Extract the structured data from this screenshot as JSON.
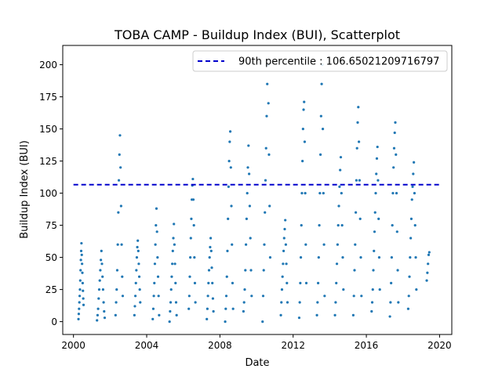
{
  "chart_data": {
    "type": "scatter",
    "title": "TOBA CAMP - Buildup Index (BUI), Scatterplot",
    "xlabel": "Date",
    "ylabel": "Buildup Index (BUI)",
    "xlim": [
      "1999-06-01",
      "2020-09-01"
    ],
    "ylim": [
      -10,
      215
    ],
    "x_ticks": [
      {
        "date": "2000-01-01",
        "label": "2000"
      },
      {
        "date": "2004-01-01",
        "label": "2004"
      },
      {
        "date": "2008-01-01",
        "label": "2008"
      },
      {
        "date": "2012-01-01",
        "label": "2012"
      },
      {
        "date": "2016-01-01",
        "label": "2016"
      },
      {
        "date": "2020-01-01",
        "label": "2020"
      }
    ],
    "y_ticks": [
      0,
      25,
      50,
      75,
      100,
      125,
      150,
      175,
      200
    ],
    "grid": false,
    "legend_position": "top-right",
    "point_color": "#1f77b4",
    "series": [
      {
        "seasons": [
          {
            "start": "2000-04-10",
            "end": "2000-07-20",
            "values": [
              2,
              6,
              10,
              15,
              20,
              25,
              32,
              40,
              48,
              55,
              61,
              52,
              45,
              38,
              30,
              24,
              18,
              13
            ]
          },
          {
            "start": "2001-04-15",
            "end": "2001-09-15",
            "values": [
              1,
              5,
              10,
              18,
              25,
              32,
              40,
              48,
              55,
              45,
              35,
              25,
              15,
              8,
              3
            ]
          },
          {
            "start": "2002-04-20",
            "end": "2002-09-10",
            "values": [
              5,
              15,
              25,
              40,
              60,
              85,
              110,
              130,
              145,
              120,
              90,
              60,
              35,
              20
            ]
          },
          {
            "start": "2003-05-01",
            "end": "2003-08-25",
            "values": [
              5,
              12,
              20,
              30,
              40,
              50,
              58,
              63,
              55,
              45,
              35,
              25,
              15
            ]
          },
          {
            "start": "2004-05-01",
            "end": "2004-09-05",
            "values": [
              2,
              10,
              20,
              30,
              45,
              60,
              75,
              88,
              70,
              50,
              35,
              20,
              5
            ]
          },
          {
            "start": "2005-04-01",
            "end": "2005-08-20",
            "values": [
              0,
              8,
              15,
              25,
              35,
              45,
              55,
              65,
              76,
              60,
              45,
              30,
              15,
              5
            ]
          },
          {
            "start": "2006-04-20",
            "end": "2006-08-30",
            "values": [
              10,
              20,
              35,
              50,
              65,
              80,
              95,
              106,
              111,
              95,
              75,
              50,
              30,
              15
            ]
          },
          {
            "start": "2007-04-15",
            "end": "2007-08-25",
            "values": [
              2,
              10,
              20,
              30,
              40,
              50,
              58,
              65,
              55,
              42,
              30,
              18,
              8
            ]
          },
          {
            "start": "2008-04-15",
            "end": "2008-09-20",
            "values": [
              0,
              10,
              20,
              35,
              55,
              80,
              105,
              125,
              140,
              148,
              120,
              90,
              60,
              30,
              10
            ]
          },
          {
            "start": "2009-04-15",
            "end": "2009-09-25",
            "values": [
              8,
              15,
              25,
              40,
              60,
              80,
              100,
              120,
              137,
              115,
              90,
              65,
              40,
              20
            ]
          },
          {
            "start": "2010-05-01",
            "end": "2010-09-30",
            "values": [
              0,
              20,
              40,
              60,
              85,
              110,
              135,
              160,
              185,
              200,
              170,
              130,
              90,
              50
            ]
          },
          {
            "start": "2011-05-01",
            "end": "2011-09-10",
            "values": [
              5,
              15,
              25,
              35,
              45,
              55,
              65,
              72,
              79,
              60,
              45,
              30,
              15
            ]
          },
          {
            "start": "2012-05-01",
            "end": "2012-09-20",
            "values": [
              3,
              15,
              30,
              50,
              75,
              100,
              125,
              150,
              165,
              171,
              140,
              100,
              60,
              30
            ]
          },
          {
            "start": "2013-04-20",
            "end": "2013-09-20",
            "values": [
              5,
              15,
              30,
              50,
              75,
              100,
              130,
              160,
              185,
              200,
              150,
              100,
              60,
              20
            ]
          },
          {
            "start": "2014-04-15",
            "end": "2014-09-30",
            "values": [
              5,
              15,
              30,
              45,
              60,
              75,
              90,
              105,
              118,
              128,
              100,
              75,
              50,
              25
            ]
          },
          {
            "start": "2015-04-15",
            "end": "2015-09-25",
            "values": [
              5,
              20,
              40,
              60,
              85,
              110,
              135,
              155,
              167,
              140,
              110,
              80,
              50,
              20
            ]
          },
          {
            "start": "2016-04-15",
            "end": "2016-09-25",
            "values": [
              8,
              15,
              25,
              40,
              55,
              70,
              85,
              100,
              115,
              127,
              136,
              110,
              80,
              50,
              25
            ]
          },
          {
            "start": "2017-04-15",
            "end": "2017-09-30",
            "values": [
              4,
              15,
              30,
              50,
              75,
              100,
              120,
              135,
              147,
              155,
              130,
              100,
              70,
              40,
              15
            ]
          },
          {
            "start": "2018-04-15",
            "end": "2018-09-25",
            "values": [
              10,
              20,
              35,
              50,
              65,
              80,
              95,
              105,
              115,
              124,
              100,
              75,
              50,
              25
            ]
          },
          {
            "start": "2019-04-20",
            "end": "2019-06-10",
            "values": [
              32,
              38,
              45,
              52,
              54
            ]
          }
        ]
      },
      {
        "name": "90th percentile : 106.65021209716797",
        "type": "line",
        "y": 106.65021209716797,
        "x_range": [
          "2000-01-01",
          "2019-12-31"
        ],
        "color": "#0000cc",
        "dash": "dashed"
      }
    ]
  }
}
